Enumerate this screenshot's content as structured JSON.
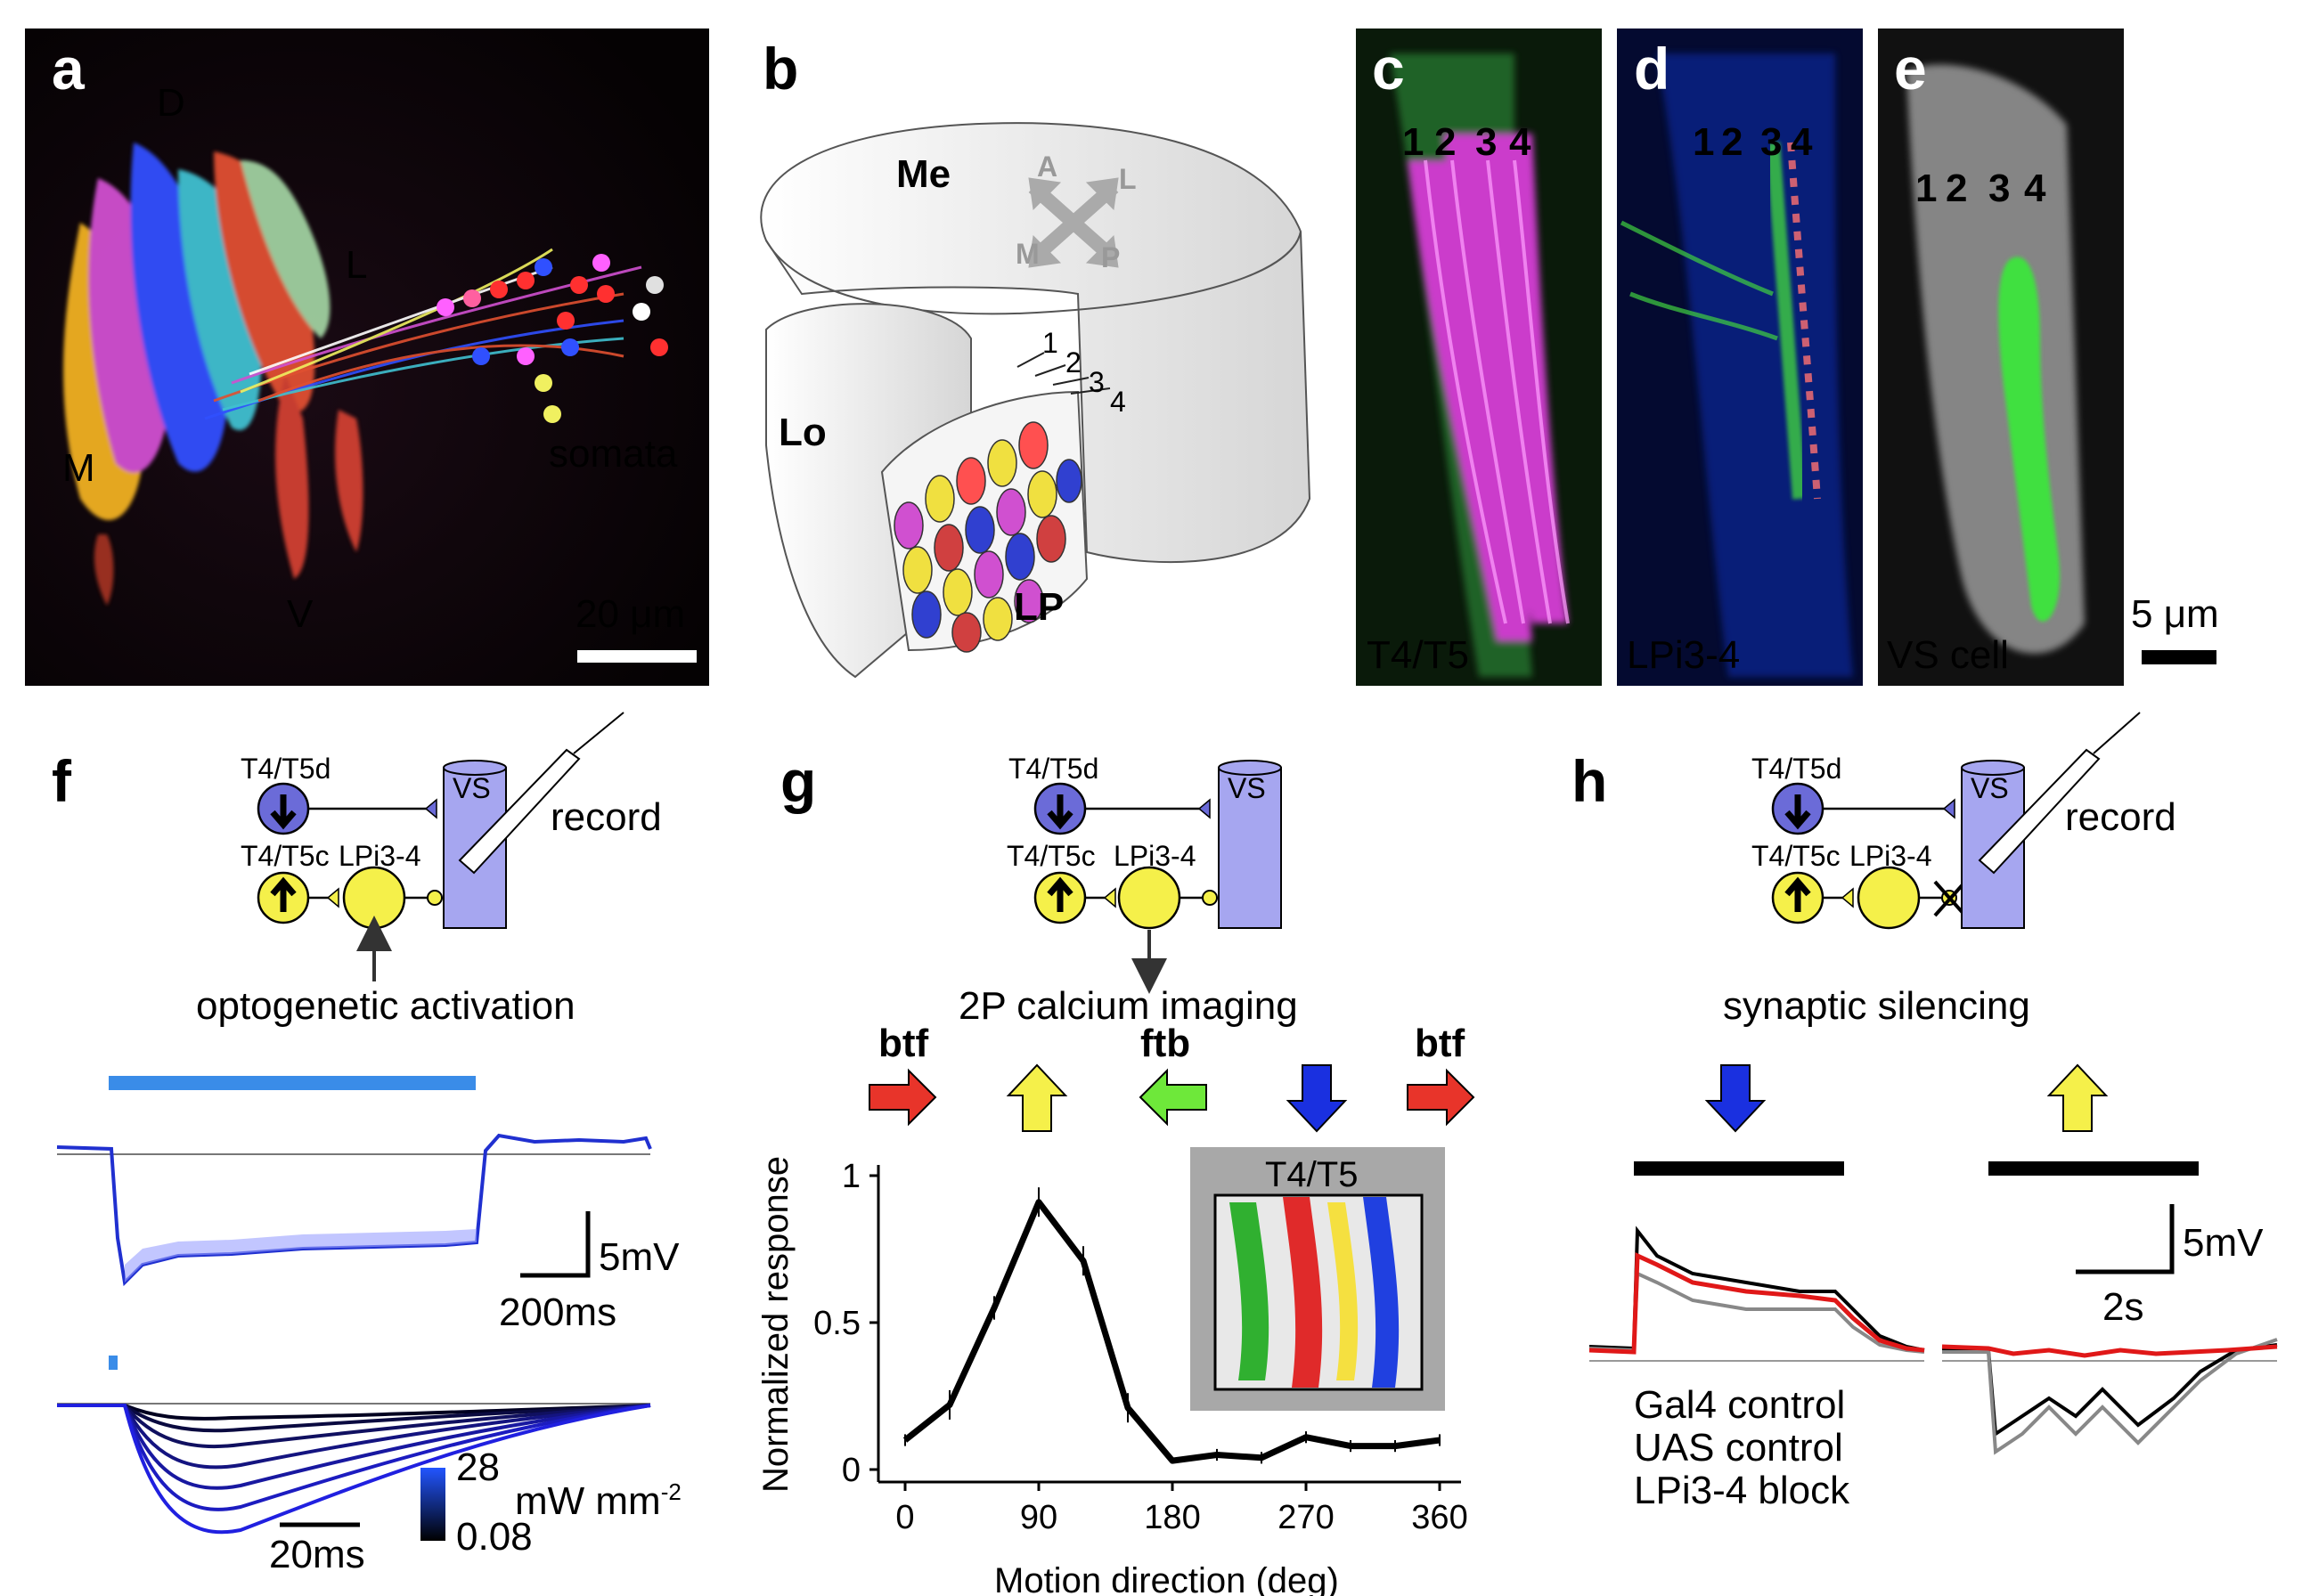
{
  "panels": {
    "a": {
      "letter": "a",
      "labels": {
        "d": "D",
        "l": "L",
        "m": "M",
        "v": "V"
      },
      "somata": "somata",
      "scalebar": "20 μm"
    },
    "b": {
      "letter": "b",
      "me": "Me",
      "lo": "Lo",
      "lp": "LP",
      "axes": {
        "a": "A",
        "l": "L",
        "m": "M",
        "p": "P"
      },
      "layers": [
        "1",
        "2",
        "3",
        "4"
      ]
    },
    "c": {
      "letter": "c",
      "layers": [
        "1",
        "2",
        "3",
        "4"
      ],
      "caption": "T4/T5"
    },
    "d": {
      "letter": "d",
      "layers": [
        "1",
        "2",
        "3",
        "4"
      ],
      "caption": "LPi3-4"
    },
    "e": {
      "letter": "e",
      "layers": [
        "1",
        "2",
        "3",
        "4"
      ],
      "caption": "VS cell",
      "scalebar": "5 μm"
    },
    "f": {
      "letter": "f",
      "t45d": "T4/T5d",
      "t45c": "T4/T5c",
      "lpi": "LPi3-4",
      "vs": "VS",
      "record": "record",
      "method": "optogenetic activation",
      "scale_v": "5mV",
      "scale_t1": "200ms",
      "scale_t2": "20ms",
      "cbar_max": "28",
      "cbar_min": "0.08",
      "cbar_unit": "mW mm",
      "cbar_exp": "-2"
    },
    "g": {
      "letter": "g",
      "t45d": "T4/T5d",
      "t45c": "T4/T5c",
      "lpi": "LPi3-4",
      "vs": "VS",
      "method": "2P calcium imaging",
      "btf1": "btf",
      "ftb": "ftb",
      "btf2": "btf",
      "inset": "T4/T5"
    },
    "h": {
      "letter": "h",
      "t45d": "T4/T5d",
      "t45c": "T4/T5c",
      "lpi": "LPi3-4",
      "vs": "VS",
      "record": "record",
      "method": "synaptic silencing",
      "scale_v": "5mV",
      "scale_t": "2s",
      "legend": [
        "Gal4 control",
        "UAS control",
        "LPi3-4 block"
      ]
    }
  },
  "chart_data": {
    "type": "line",
    "xlabel": "Motion direction (deg)",
    "ylabel": "Normalized response",
    "xlim": [
      0,
      360
    ],
    "ylim": [
      0,
      1
    ],
    "xticks": [
      "0",
      "90",
      "180",
      "270",
      "360"
    ],
    "yticks": [
      "0",
      "0.5",
      "1"
    ],
    "x": [
      0,
      30,
      60,
      90,
      120,
      150,
      180,
      210,
      240,
      270,
      300,
      330,
      360
    ],
    "y": [
      0.1,
      0.22,
      0.55,
      0.91,
      0.71,
      0.21,
      0.03,
      0.05,
      0.04,
      0.11,
      0.08,
      0.08,
      0.1
    ],
    "err": [
      0.02,
      0.05,
      0.04,
      0.05,
      0.05,
      0.05,
      0.01,
      0.02,
      0.02,
      0.02,
      0.02,
      0.02,
      0.02
    ]
  }
}
